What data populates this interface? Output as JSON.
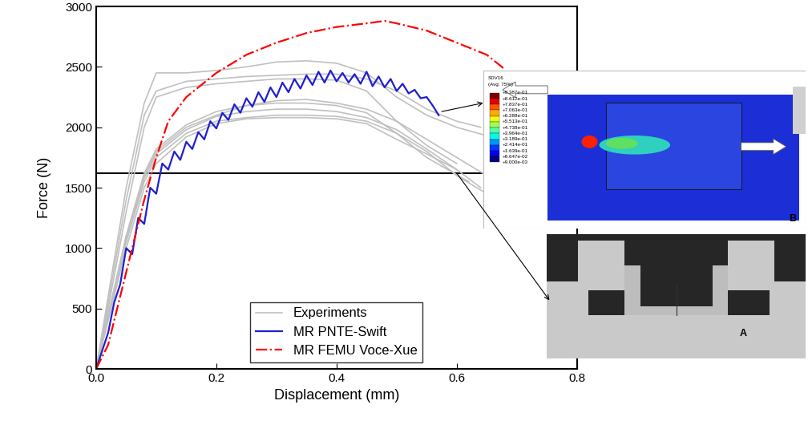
{
  "chart_data": {
    "type": "line",
    "x_label": "Displacement (mm)",
    "y_label": "Force (N)",
    "xlim": [
      0,
      0.8
    ],
    "xticks": [
      {
        "value": 0,
        "label": "0.0"
      },
      0.2,
      0.4,
      0.6,
      0.8
    ],
    "ylim": [
      0,
      3000
    ],
    "yticks": [
      0,
      500,
      1000,
      1500,
      2000,
      2500,
      3000
    ],
    "legend": "lower center",
    "series": [
      {
        "name": "Experiments",
        "color": "#c0c0c0",
        "line_style": "solid",
        "x": [
          0,
          0.02,
          0.05,
          0.08,
          0.1,
          0.15,
          0.2,
          0.25,
          0.3,
          0.35,
          0.4,
          0.45,
          0.5,
          0.55,
          0.6,
          0.65
        ],
        "values": [
          0,
          600,
          1500,
          2200,
          2450,
          2450,
          2470,
          2500,
          2540,
          2550,
          2530,
          2450,
          2250,
          2100,
          2000,
          1930
        ]
      },
      {
        "name": "Experiments",
        "color": "#c0c0c0",
        "line_style": "solid",
        "x": [
          0,
          0.02,
          0.05,
          0.08,
          0.1,
          0.15,
          0.2,
          0.25,
          0.3,
          0.35,
          0.4,
          0.45,
          0.5,
          0.55,
          0.6,
          0.64
        ],
        "values": [
          0,
          550,
          1400,
          2100,
          2300,
          2380,
          2400,
          2420,
          2430,
          2440,
          2440,
          2400,
          2300,
          2150,
          2050,
          2000
        ]
      },
      {
        "name": "Experiments",
        "color": "#c0c0c0",
        "line_style": "solid",
        "x": [
          0,
          0.02,
          0.05,
          0.08,
          0.1,
          0.15,
          0.2,
          0.25,
          0.3,
          0.35,
          0.4,
          0.45,
          0.5,
          0.55,
          0.6
        ],
        "values": [
          0,
          500,
          1300,
          2000,
          2250,
          2330,
          2360,
          2380,
          2400,
          2400,
          2390,
          2300,
          2050,
          1850,
          1700
        ]
      },
      {
        "name": "Experiments",
        "color": "#c0c0c0",
        "line_style": "solid",
        "x": [
          0,
          0.02,
          0.05,
          0.08,
          0.1,
          0.15,
          0.2,
          0.25,
          0.3,
          0.35,
          0.4,
          0.45,
          0.5,
          0.55,
          0.6,
          0.65,
          0.68
        ],
        "values": [
          0,
          450,
          1100,
          1600,
          1800,
          2000,
          2100,
          2180,
          2220,
          2230,
          2200,
          2150,
          2050,
          1900,
          1750,
          1600,
          1350
        ]
      },
      {
        "name": "Experiments",
        "color": "#c0c0c0",
        "line_style": "solid",
        "x": [
          0,
          0.02,
          0.05,
          0.08,
          0.1,
          0.15,
          0.2,
          0.25,
          0.3,
          0.35,
          0.4,
          0.45,
          0.5,
          0.55,
          0.6,
          0.65
        ],
        "values": [
          0,
          420,
          1050,
          1550,
          1750,
          1950,
          2050,
          2080,
          2100,
          2100,
          2090,
          2050,
          1950,
          1800,
          1600,
          1450
        ]
      },
      {
        "name": "Experiments",
        "color": "#c0c0c0",
        "line_style": "solid",
        "x": [
          0,
          0.02,
          0.05,
          0.08,
          0.1,
          0.15,
          0.2,
          0.25,
          0.3,
          0.35,
          0.4,
          0.45,
          0.5,
          0.55,
          0.62
        ],
        "values": [
          0,
          440,
          1100,
          1620,
          1820,
          2020,
          2130,
          2180,
          2200,
          2200,
          2180,
          2120,
          1950,
          1750,
          1550
        ]
      },
      {
        "name": "Experiments",
        "color": "#c0c0c0",
        "line_style": "solid",
        "x": [
          0,
          0.02,
          0.05,
          0.08,
          0.1,
          0.15,
          0.2,
          0.25,
          0.3,
          0.35,
          0.4,
          0.45,
          0.5,
          0.55,
          0.6
        ],
        "values": [
          0,
          400,
          1000,
          1500,
          1700,
          1920,
          2030,
          2070,
          2080,
          2080,
          2070,
          2030,
          1900,
          1780,
          1650
        ]
      },
      {
        "name": "Experiments",
        "color": "#c0c0c0",
        "line_style": "solid",
        "x": [
          0,
          0.02,
          0.05,
          0.08,
          0.1,
          0.15,
          0.2,
          0.25,
          0.3,
          0.35,
          0.4,
          0.45,
          0.5,
          0.55,
          0.6,
          0.64
        ],
        "values": [
          0,
          430,
          1080,
          1580,
          1780,
          1980,
          2090,
          2130,
          2150,
          2150,
          2130,
          2080,
          1980,
          1820,
          1650,
          1500
        ]
      },
      {
        "name": "MR PNTE-Swift",
        "color": "#1f1fd0",
        "line_style": "solid",
        "x": [
          0,
          0.02,
          0.03,
          0.04,
          0.05,
          0.06,
          0.07,
          0.08,
          0.09,
          0.1,
          0.11,
          0.12,
          0.13,
          0.14,
          0.15,
          0.16,
          0.17,
          0.18,
          0.19,
          0.2,
          0.21,
          0.22,
          0.23,
          0.24,
          0.25,
          0.26,
          0.27,
          0.28,
          0.29,
          0.3,
          0.31,
          0.32,
          0.33,
          0.34,
          0.35,
          0.36,
          0.37,
          0.38,
          0.39,
          0.4,
          0.41,
          0.42,
          0.43,
          0.44,
          0.45,
          0.46,
          0.47,
          0.48,
          0.49,
          0.5,
          0.51,
          0.52,
          0.53,
          0.54,
          0.55,
          0.56,
          0.57
        ],
        "values": [
          0,
          300,
          550,
          700,
          1000,
          950,
          1250,
          1200,
          1500,
          1450,
          1700,
          1650,
          1800,
          1730,
          1880,
          1820,
          1960,
          1900,
          2050,
          1990,
          2120,
          2060,
          2190,
          2120,
          2240,
          2170,
          2290,
          2210,
          2330,
          2250,
          2370,
          2290,
          2400,
          2320,
          2430,
          2350,
          2460,
          2370,
          2470,
          2380,
          2450,
          2370,
          2440,
          2360,
          2460,
          2340,
          2420,
          2330,
          2400,
          2300,
          2360,
          2280,
          2310,
          2240,
          2250,
          2180,
          2100
        ]
      },
      {
        "name": "MR FEMU Voce-Xue",
        "color": "#ff0000",
        "line_style": "dashdot",
        "x": [
          0,
          0.02,
          0.05,
          0.08,
          0.1,
          0.12,
          0.15,
          0.2,
          0.25,
          0.3,
          0.35,
          0.4,
          0.45,
          0.48,
          0.5,
          0.55,
          0.6,
          0.65,
          0.68
        ],
        "values": [
          0,
          200,
          800,
          1400,
          1750,
          2050,
          2250,
          2450,
          2600,
          2700,
          2780,
          2830,
          2860,
          2880,
          2860,
          2800,
          2700,
          2600,
          2480
        ]
      }
    ],
    "insets": {
      "contour": {
        "title": "SDV16",
        "subtitle": "(Avg: 75%)",
        "label": "B",
        "levels": [
          "+9.387e-01",
          "+8.612e-01",
          "+7.837e-01",
          "+7.063e-01",
          "+6.288e-01",
          "+5.513e-01",
          "+4.738e-01",
          "+3.964e-01",
          "+3.189e-01",
          "+2.414e-01",
          "+1.639e-01",
          "+8.647e-02",
          "+9.000e-03"
        ]
      },
      "micrograph": {
        "label": "A"
      }
    }
  }
}
